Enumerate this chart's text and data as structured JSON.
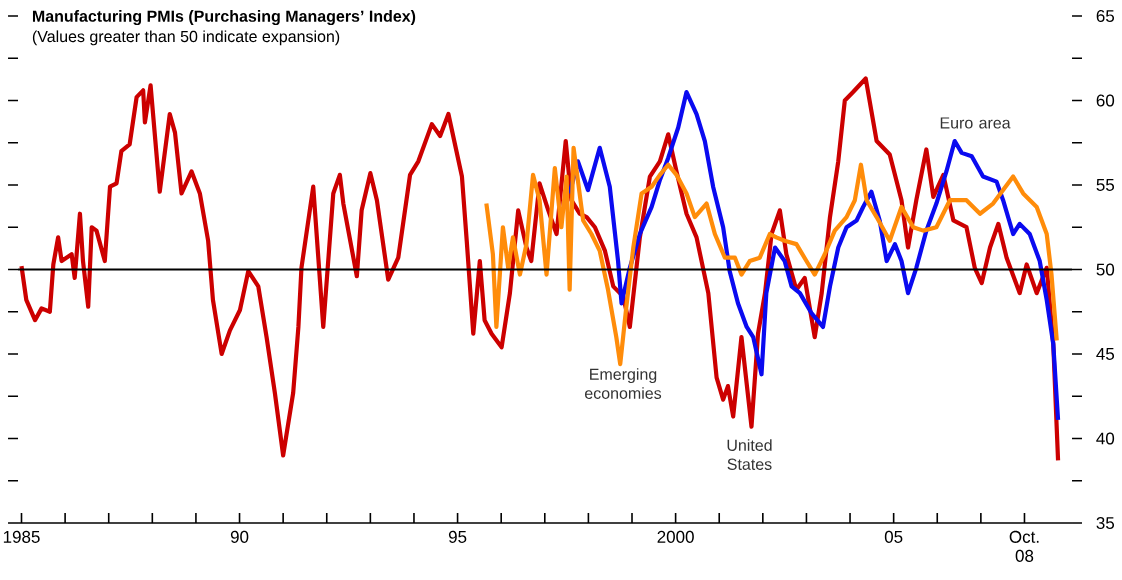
{
  "chart_data": {
    "type": "line",
    "title": "Manufacturing PMIs (Purchasing Managers’ Index)",
    "subtitle": "(Values greater than 50 indicate expansion)",
    "xlim": [
      1984.92,
      2009.09
    ],
    "ylim": [
      35,
      65
    ],
    "xticks": [
      {
        "value": 1985,
        "label": "1985"
      },
      {
        "value": 1986,
        "label": null
      },
      {
        "value": 1987,
        "label": null
      },
      {
        "value": 1988,
        "label": null
      },
      {
        "value": 1989,
        "label": null
      },
      {
        "value": 1990,
        "label": "90"
      },
      {
        "value": 1991,
        "label": null
      },
      {
        "value": 1992,
        "label": null
      },
      {
        "value": 1993,
        "label": null
      },
      {
        "value": 1994,
        "label": null
      },
      {
        "value": 1995,
        "label": "95"
      },
      {
        "value": 1996,
        "label": null
      },
      {
        "value": 1997,
        "label": null
      },
      {
        "value": 1998,
        "label": null
      },
      {
        "value": 1999,
        "label": null
      },
      {
        "value": 2000,
        "label": "2000"
      },
      {
        "value": 2001,
        "label": null
      },
      {
        "value": 2002,
        "label": null
      },
      {
        "value": 2003,
        "label": null
      },
      {
        "value": 2004,
        "label": null
      },
      {
        "value": 2005,
        "label": "05"
      },
      {
        "value": 2006,
        "label": null
      },
      {
        "value": 2007,
        "label": null
      },
      {
        "value": 2008,
        "label": "Oct. 08"
      }
    ],
    "yticks": [
      35,
      {
        "value": 37.5,
        "label": null
      },
      40,
      {
        "value": 42.5,
        "label": null
      },
      45,
      {
        "value": 47.5,
        "label": null
      },
      50,
      {
        "value": 52.5,
        "label": null
      },
      55,
      {
        "value": 57.5,
        "label": null
      },
      60,
      {
        "value": 62.5,
        "label": null
      },
      65
    ],
    "marker": "none",
    "line_style": "solid",
    "ref_lines": [
      {
        "axis": "y",
        "value": 50,
        "color": "#000000"
      }
    ],
    "series": [
      {
        "name": "United States",
        "color": "#cc0000",
        "x": [
          1985.0,
          1985.11,
          1985.31,
          1985.46,
          1985.65,
          1985.73,
          1985.84,
          1985.92,
          1986.15,
          1986.22,
          1986.34,
          1986.41,
          1986.53,
          1986.61,
          1986.72,
          1986.91,
          1987.03,
          1987.18,
          1987.29,
          1987.48,
          1987.64,
          1987.79,
          1987.83,
          1987.96,
          1988.17,
          1988.4,
          1988.52,
          1988.67,
          1988.9,
          1989.09,
          1989.28,
          1989.39,
          1989.59,
          1989.78,
          1990.01,
          1990.2,
          1990.43,
          1990.62,
          1990.81,
          1991.0,
          1991.23,
          1991.35,
          1991.42,
          1991.69,
          1991.92,
          1992.15,
          1992.3,
          1992.38,
          1992.69,
          1992.8,
          1993.0,
          1993.15,
          1993.41,
          1993.64,
          1993.91,
          1994.1,
          1994.41,
          1994.6,
          1994.79,
          1995.1,
          1995.21,
          1995.36,
          1995.51,
          1995.62,
          1995.78,
          1996.01,
          1996.2,
          1996.39,
          1996.58,
          1996.69,
          1996.88,
          1997.08,
          1997.27,
          1997.48,
          1997.61,
          1997.8,
          1997.96,
          1998.15,
          1998.38,
          1998.57,
          1998.8,
          1998.95,
          1999.18,
          1999.41,
          1999.64,
          1999.83,
          2000.02,
          2000.25,
          2000.48,
          2000.75,
          2000.94,
          2001.09,
          2001.2,
          2001.32,
          2001.51,
          2001.74,
          2001.89,
          2002.05,
          2002.2,
          2002.39,
          2002.54,
          2002.77,
          2002.96,
          2003.19,
          2003.35,
          2003.54,
          2003.73,
          2003.88,
          2004.07,
          2004.36,
          2004.61,
          2004.91,
          2005.18,
          2005.33,
          2005.52,
          2005.75,
          2005.91,
          2006.14,
          2006.37,
          2006.67,
          2006.86,
          2007.02,
          2007.21,
          2007.4,
          2007.59,
          2007.89,
          2008.05,
          2008.28,
          2008.51,
          2008.66,
          2008.77
        ],
        "values": [
          50.2,
          48.2,
          47.0,
          47.7,
          47.5,
          50.3,
          51.9,
          50.5,
          50.9,
          49.5,
          53.3,
          50.5,
          47.8,
          52.5,
          52.3,
          50.5,
          54.9,
          55.1,
          57.0,
          57.4,
          60.2,
          60.6,
          58.7,
          60.9,
          54.6,
          59.2,
          58.1,
          54.5,
          55.8,
          54.5,
          51.7,
          48.2,
          45.0,
          46.4,
          47.6,
          49.9,
          49.0,
          46.0,
          42.7,
          39.0,
          42.7,
          46.6,
          50.1,
          54.9,
          46.6,
          54.5,
          55.6,
          53.9,
          49.6,
          53.5,
          55.7,
          54.1,
          49.4,
          50.7,
          55.6,
          56.4,
          58.6,
          57.9,
          59.2,
          55.5,
          51.7,
          46.2,
          50.5,
          47.0,
          46.2,
          45.4,
          48.6,
          53.5,
          51.3,
          50.5,
          55.1,
          53.5,
          52.1,
          57.6,
          54.1,
          53.3,
          53.1,
          52.5,
          51.1,
          49.0,
          48.4,
          46.6,
          51.9,
          55.5,
          56.4,
          58.0,
          55.8,
          53.3,
          51.9,
          48.6,
          43.6,
          42.3,
          43.1,
          41.3,
          46.0,
          40.7,
          46.2,
          48.6,
          52.1,
          53.5,
          50.9,
          48.8,
          49.5,
          46.0,
          48.6,
          53.1,
          56.4,
          60.0,
          60.5,
          61.3,
          57.6,
          56.8,
          54.1,
          51.3,
          54.1,
          57.1,
          54.3,
          55.6,
          52.9,
          52.5,
          50.1,
          49.2,
          51.3,
          52.7,
          50.7,
          48.6,
          50.3,
          48.6,
          50.1,
          45.6,
          38.7
        ]
      },
      {
        "name": "Euro area",
        "color": "#0a0af0",
        "x": [
          1997.57,
          1997.76,
          1997.99,
          1998.26,
          1998.49,
          1998.68,
          1998.76,
          1998.95,
          1999.18,
          1999.45,
          1999.64,
          1999.83,
          2000.06,
          2000.25,
          2000.48,
          2000.67,
          2000.86,
          2001.09,
          2001.24,
          2001.43,
          2001.63,
          2001.78,
          2001.97,
          2002.08,
          2002.28,
          2002.5,
          2002.66,
          2002.85,
          2003.12,
          2003.38,
          2003.54,
          2003.73,
          2003.92,
          2004.15,
          2004.3,
          2004.49,
          2004.68,
          2004.84,
          2005.03,
          2005.18,
          2005.33,
          2005.52,
          2005.75,
          2005.98,
          2006.21,
          2006.4,
          2006.56,
          2006.79,
          2007.05,
          2007.36,
          2007.51,
          2007.74,
          2007.89,
          2008.12,
          2008.35,
          2008.51,
          2008.66,
          2008.77
        ],
        "values": [
          54.5,
          56.4,
          54.7,
          57.2,
          54.9,
          50.5,
          48.0,
          50.1,
          52.1,
          53.7,
          55.3,
          56.6,
          58.4,
          60.5,
          59.2,
          57.6,
          54.9,
          52.5,
          49.9,
          48.0,
          46.6,
          46.0,
          43.8,
          48.6,
          51.3,
          50.5,
          49.0,
          48.6,
          47.4,
          46.6,
          49.0,
          51.3,
          52.5,
          52.9,
          53.7,
          54.6,
          52.9,
          50.5,
          51.5,
          50.5,
          48.6,
          50.1,
          52.3,
          53.9,
          55.8,
          57.6,
          56.9,
          56.7,
          55.5,
          55.2,
          54.1,
          52.1,
          52.7,
          52.1,
          50.5,
          48.2,
          45.6,
          41.1
        ]
      },
      {
        "name": "Emerging economies",
        "color": "#ff8c0a",
        "x": [
          1995.66,
          1995.81,
          1995.89,
          1996.04,
          1996.16,
          1996.27,
          1996.43,
          1996.58,
          1996.73,
          1996.88,
          1997.04,
          1997.23,
          1997.38,
          1997.5,
          1997.57,
          1997.66,
          1997.88,
          1998.07,
          1998.26,
          1998.45,
          1998.64,
          1998.73,
          1998.87,
          1999.03,
          1999.22,
          1999.45,
          1999.64,
          1999.83,
          2000.02,
          2000.25,
          2000.44,
          2000.71,
          2000.9,
          2001.13,
          2001.36,
          2001.51,
          2001.7,
          2001.93,
          2002.16,
          2002.31,
          2002.5,
          2002.77,
          2003.0,
          2003.19,
          2003.42,
          2003.65,
          2003.92,
          2004.11,
          2004.25,
          2004.38,
          2004.61,
          2004.91,
          2005.18,
          2005.45,
          2005.68,
          2005.98,
          2006.29,
          2006.67,
          2006.98,
          2007.28,
          2007.51,
          2007.74,
          2007.97,
          2008.28,
          2008.51,
          2008.62,
          2008.74
        ],
        "values": [
          53.9,
          50.9,
          46.6,
          52.5,
          50.1,
          51.9,
          49.7,
          51.5,
          55.6,
          54.1,
          49.7,
          56.0,
          52.5,
          55.5,
          48.8,
          57.2,
          52.9,
          52.1,
          51.1,
          48.8,
          46.0,
          44.4,
          47.8,
          51.3,
          54.5,
          54.9,
          55.6,
          56.2,
          55.6,
          54.5,
          53.1,
          53.9,
          52.1,
          50.7,
          50.7,
          49.7,
          50.5,
          50.7,
          52.1,
          51.9,
          51.7,
          51.5,
          50.5,
          49.7,
          50.9,
          52.3,
          53.1,
          54.1,
          56.2,
          54.1,
          53.1,
          51.7,
          53.7,
          52.5,
          52.3,
          52.5,
          54.1,
          54.1,
          53.3,
          53.9,
          54.7,
          55.5,
          54.5,
          53.7,
          52.1,
          49.7,
          45.8
        ]
      }
    ]
  }
}
